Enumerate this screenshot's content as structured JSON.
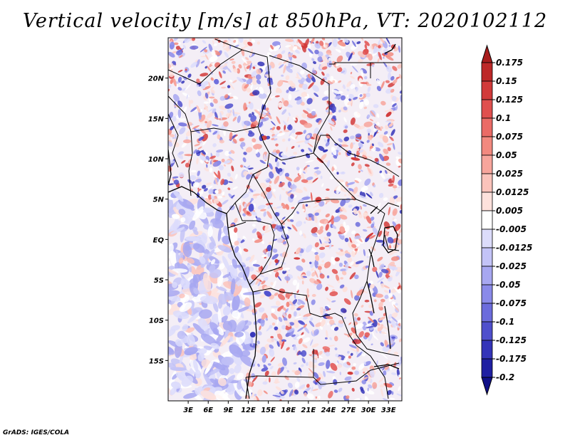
{
  "title": "Vertical velocity [m/s] at 850hPa, VT: 2020102112",
  "footer": "GrADS: IGES/COLA",
  "map": {
    "lon_range": [
      0,
      35
    ],
    "lat_range": [
      -20,
      25
    ],
    "lat_ticks": [
      {
        "value": 20,
        "label": "20N"
      },
      {
        "value": 15,
        "label": "15N"
      },
      {
        "value": 10,
        "label": "10N"
      },
      {
        "value": 5,
        "label": "5N"
      },
      {
        "value": 0,
        "label": "EQ"
      },
      {
        "value": -5,
        "label": "5S"
      },
      {
        "value": -10,
        "label": "10S"
      },
      {
        "value": -15,
        "label": "15S"
      }
    ],
    "lon_ticks": [
      {
        "value": 3,
        "label": "3E"
      },
      {
        "value": 6,
        "label": "6E"
      },
      {
        "value": 9,
        "label": "9E"
      },
      {
        "value": 12,
        "label": "12E"
      },
      {
        "value": 15,
        "label": "15E"
      },
      {
        "value": 18,
        "label": "18E"
      },
      {
        "value": 21,
        "label": "21E"
      },
      {
        "value": 24,
        "label": "24E"
      },
      {
        "value": 27,
        "label": "27E"
      },
      {
        "value": 30,
        "label": "30E"
      },
      {
        "value": 33,
        "label": "33E"
      }
    ]
  },
  "colorbar": {
    "labels": [
      "0.175",
      "0.15",
      "0.125",
      "0.1",
      "0.075",
      "0.05",
      "0.025",
      "0.0125",
      "0.005",
      "-0.005",
      "-0.0125",
      "-0.025",
      "-0.05",
      "-0.075",
      "-0.1",
      "-0.125",
      "-0.175",
      "-0.2"
    ],
    "colors": [
      "#a81d1d",
      "#bd2828",
      "#d13a3a",
      "#e0504f",
      "#ea6b66",
      "#f2897f",
      "#f7a59c",
      "#fbc3bb",
      "#fde1dc",
      "#ffffff",
      "#dcdcfb",
      "#c3c3f7",
      "#a7a7f1",
      "#8a8ae9",
      "#6c6cdc",
      "#4f4fcc",
      "#3434b9",
      "#1f1fa2",
      "#101088"
    ]
  }
}
